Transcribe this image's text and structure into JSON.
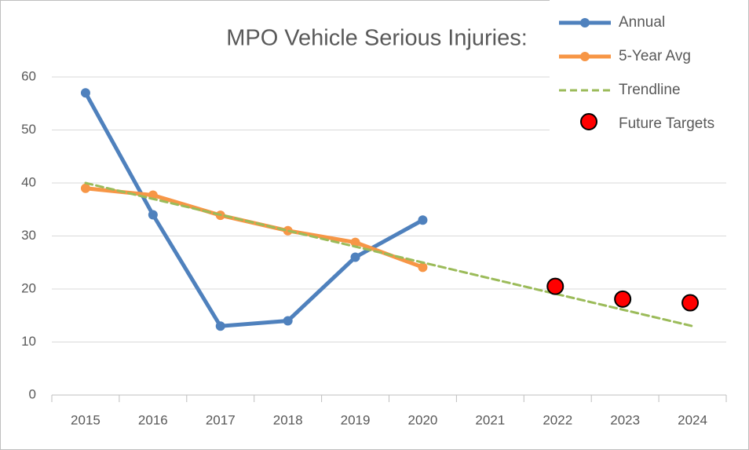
{
  "chart_data": {
    "type": "line",
    "title": "MPO Vehicle Serious Injuries:",
    "categories": [
      "2015",
      "2016",
      "2017",
      "2018",
      "2019",
      "2020",
      "2021",
      "2022",
      "2023",
      "2024"
    ],
    "series": [
      {
        "name": "Annual",
        "color": "#4f81bd",
        "dash": false,
        "markers_only": false,
        "values": [
          57,
          34,
          13,
          14,
          26,
          33,
          null,
          null,
          null,
          null
        ]
      },
      {
        "name": "5-Year Avg",
        "color": "#f79646",
        "dash": false,
        "markers_only": false,
        "values": [
          39,
          37.7,
          33.9,
          31,
          28.8,
          24.1,
          null,
          null,
          null,
          null
        ]
      },
      {
        "name": "Trendline",
        "color": "#9bbb59",
        "dash": true,
        "markers_only": false,
        "values": [
          40,
          37,
          34,
          31,
          28,
          25,
          22,
          19,
          16,
          13
        ]
      },
      {
        "name": "Future Targets",
        "color": "#ff0000",
        "dash": false,
        "markers_only": true,
        "values": [
          null,
          null,
          null,
          null,
          null,
          null,
          null,
          20.5,
          18.1,
          17.4
        ]
      }
    ],
    "ylim": [
      0,
      60
    ],
    "yticks": [
      0,
      10,
      20,
      30,
      40,
      50,
      60
    ],
    "grid": true,
    "legend": "top-right"
  }
}
